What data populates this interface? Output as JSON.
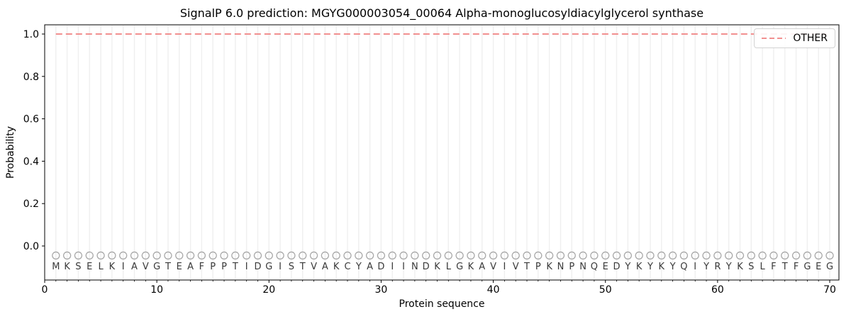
{
  "title": "SignalP 6.0 prediction: MGYG000003054_00064 Alpha-monoglucosyldiacylglycerol synthase",
  "chart_data": {
    "type": "line",
    "title": "SignalP 6.0 prediction: MGYG000003054_00064 Alpha-monoglucosyldiacylglycerol synthase",
    "xlabel": "Protein sequence",
    "ylabel": "Probability",
    "xlim": [
      0,
      70.9
    ],
    "ylim": [
      -0.16,
      1.045
    ],
    "x_ticks_major": [
      0,
      10,
      20,
      30,
      40,
      50,
      60,
      70
    ],
    "y_ticks": [
      "0.0",
      "0.2",
      "0.4",
      "0.6",
      "0.8",
      "1.0"
    ],
    "grid": {
      "vertical_line_per_residue": true,
      "color": "#efefef"
    },
    "legend": {
      "location": "upper right",
      "entries": [
        {
          "label": "OTHER",
          "color": "#f08080",
          "linestyle": "dashed"
        }
      ]
    },
    "sequence": "MKSELKIAVGTEAFPPTIDGISTVAKCYADIINDKLGKAVIVTPKNPNQEDYKYKYQIYRYKSLFTFGEG",
    "sequence_positions": {
      "start": 1,
      "end": 70
    },
    "series": [
      {
        "name": "OTHER",
        "linestyle": "dashed",
        "color": "#f08080",
        "x_start": 1,
        "x_end": 70,
        "constant_y": 1.0
      }
    ],
    "residue_markers": {
      "shape": "open-circle",
      "stroke": "#a9a9a9",
      "y": -0.045
    },
    "residue_letters": {
      "color": "#3a3a3a",
      "y": -0.095
    },
    "spine_color": "#000000",
    "background": "#ffffff"
  }
}
